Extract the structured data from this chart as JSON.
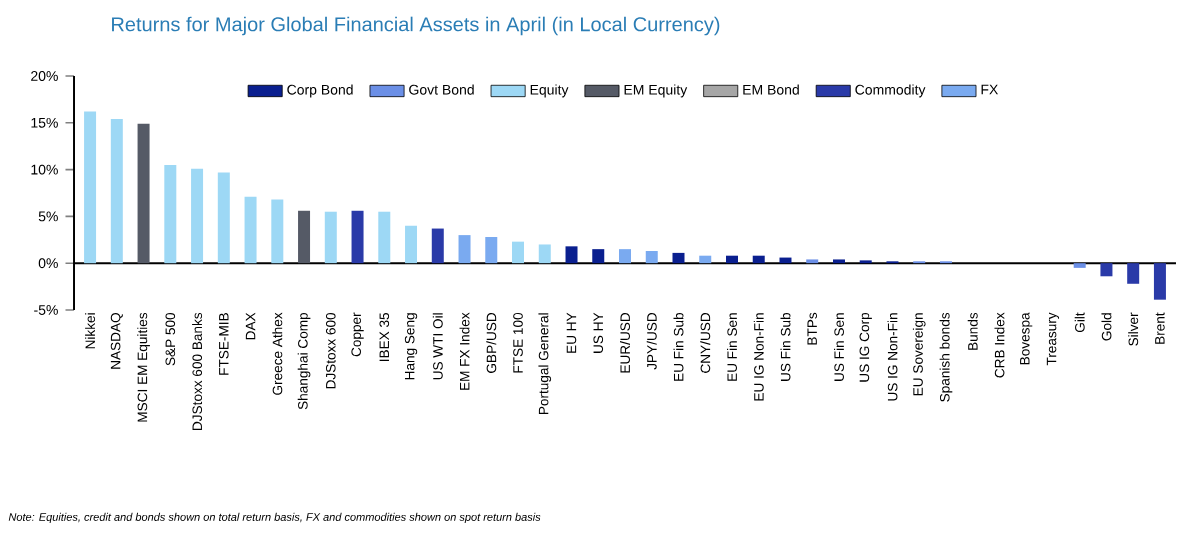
{
  "chart_data": {
    "type": "bar",
    "title": "Returns for Major Global Financial Assets in April (in Local Currency)",
    "categories": [
      "Nikkei",
      "NASDAQ",
      "MSCI EM Equities",
      "S&P 500",
      "DJStoxx 600 Banks",
      "FTSE-MIB",
      "DAX",
      "Greece Athex",
      "Shanghai Comp",
      "DJStoxx 600",
      "Copper",
      "IBEX 35",
      "Hang Seng",
      "US WTI Oil",
      "EM FX Index",
      "GBP/USD",
      "FTSE 100",
      "Portugal General",
      "EU HY",
      "US HY",
      "EUR/USD",
      "JPY/USD",
      "EU Fin Sub",
      "CNY/USD",
      "EU Fin Sen",
      "EU IG Non-Fin",
      "US Fin Sub",
      "BTPs",
      "US Fin Sen",
      "US IG Corp",
      "US IG Non-Fin",
      "EU Sovereign",
      "Spanish bonds",
      "Bunds",
      "CRB Index",
      "Bovespa",
      "Treasury",
      "Gilt",
      "Gold",
      "Silver",
      "Brent"
    ],
    "series": [
      {
        "name": "Corp Bond",
        "color": "#0a1f8f",
        "values": [
          null,
          null,
          null,
          null,
          null,
          null,
          null,
          null,
          null,
          null,
          null,
          null,
          null,
          null,
          null,
          null,
          null,
          null,
          1.8,
          1.5,
          null,
          null,
          1.1,
          null,
          0.8,
          0.8,
          0.6,
          null,
          0.4,
          0.3,
          0.2,
          null,
          null,
          null,
          null,
          null,
          null,
          null,
          null,
          null,
          null
        ]
      },
      {
        "name": "Govt Bond",
        "color": "#6b8fe6",
        "values": [
          null,
          null,
          null,
          null,
          null,
          null,
          null,
          null,
          null,
          null,
          null,
          null,
          null,
          null,
          null,
          null,
          null,
          null,
          null,
          null,
          null,
          null,
          null,
          null,
          null,
          null,
          null,
          0.4,
          null,
          null,
          null,
          0.2,
          0.2,
          0,
          null,
          null,
          0,
          -0.5,
          null,
          null,
          null
        ]
      },
      {
        "name": "Equity",
        "color": "#9dd8f5",
        "values": [
          16.2,
          15.4,
          null,
          10.5,
          10.1,
          9.7,
          7.1,
          6.8,
          null,
          5.5,
          null,
          5.5,
          4.0,
          null,
          null,
          null,
          2.3,
          2.0,
          null,
          null,
          null,
          null,
          null,
          null,
          null,
          null,
          null,
          null,
          null,
          null,
          null,
          null,
          null,
          null,
          null,
          null,
          null,
          null,
          null,
          null,
          null
        ]
      },
      {
        "name": "EM Equity",
        "color": "#555a66",
        "values": [
          null,
          null,
          14.9,
          null,
          null,
          null,
          null,
          null,
          5.6,
          null,
          null,
          null,
          null,
          null,
          null,
          null,
          null,
          null,
          null,
          null,
          null,
          null,
          null,
          null,
          null,
          null,
          null,
          null,
          null,
          null,
          null,
          null,
          null,
          null,
          null,
          0,
          null,
          null,
          null,
          null,
          null
        ]
      },
      {
        "name": "EM Bond",
        "color": "#a6a6a6",
        "values": [
          null,
          null,
          null,
          null,
          null,
          null,
          null,
          null,
          null,
          null,
          null,
          null,
          null,
          null,
          null,
          null,
          null,
          null,
          null,
          null,
          null,
          null,
          null,
          null,
          null,
          null,
          null,
          null,
          null,
          null,
          null,
          null,
          null,
          null,
          null,
          null,
          null,
          null,
          null,
          null,
          null
        ]
      },
      {
        "name": "Commodity",
        "color": "#2a3aa8",
        "values": [
          null,
          null,
          null,
          null,
          null,
          null,
          null,
          null,
          null,
          null,
          5.6,
          null,
          null,
          3.7,
          null,
          null,
          null,
          null,
          null,
          null,
          null,
          null,
          null,
          null,
          null,
          null,
          null,
          null,
          null,
          null,
          null,
          null,
          null,
          null,
          0,
          null,
          null,
          null,
          -1.4,
          -2.2,
          -3.9
        ]
      },
      {
        "name": "FX",
        "color": "#7aaaf0",
        "values": [
          null,
          null,
          null,
          null,
          null,
          null,
          null,
          null,
          null,
          null,
          null,
          null,
          null,
          null,
          3.0,
          2.8,
          null,
          null,
          null,
          null,
          1.5,
          1.3,
          null,
          0.8,
          null,
          null,
          null,
          null,
          null,
          null,
          null,
          null,
          null,
          null,
          null,
          null,
          null,
          null,
          null,
          null,
          null
        ]
      }
    ],
    "ylim": [
      -5,
      20
    ],
    "yticks": [
      {
        "value": -5,
        "label": "-5%"
      },
      {
        "value": 0,
        "label": "0%"
      },
      {
        "value": 5,
        "label": "5%"
      },
      {
        "value": 10,
        "label": "10%"
      },
      {
        "value": 15,
        "label": "15%"
      },
      {
        "value": 20,
        "label": "20%"
      }
    ],
    "legend": "top",
    "annotations": [
      "Note: Equities, credit and bonds shown on total return basis, FX and commodities shown on spot return basis"
    ]
  }
}
